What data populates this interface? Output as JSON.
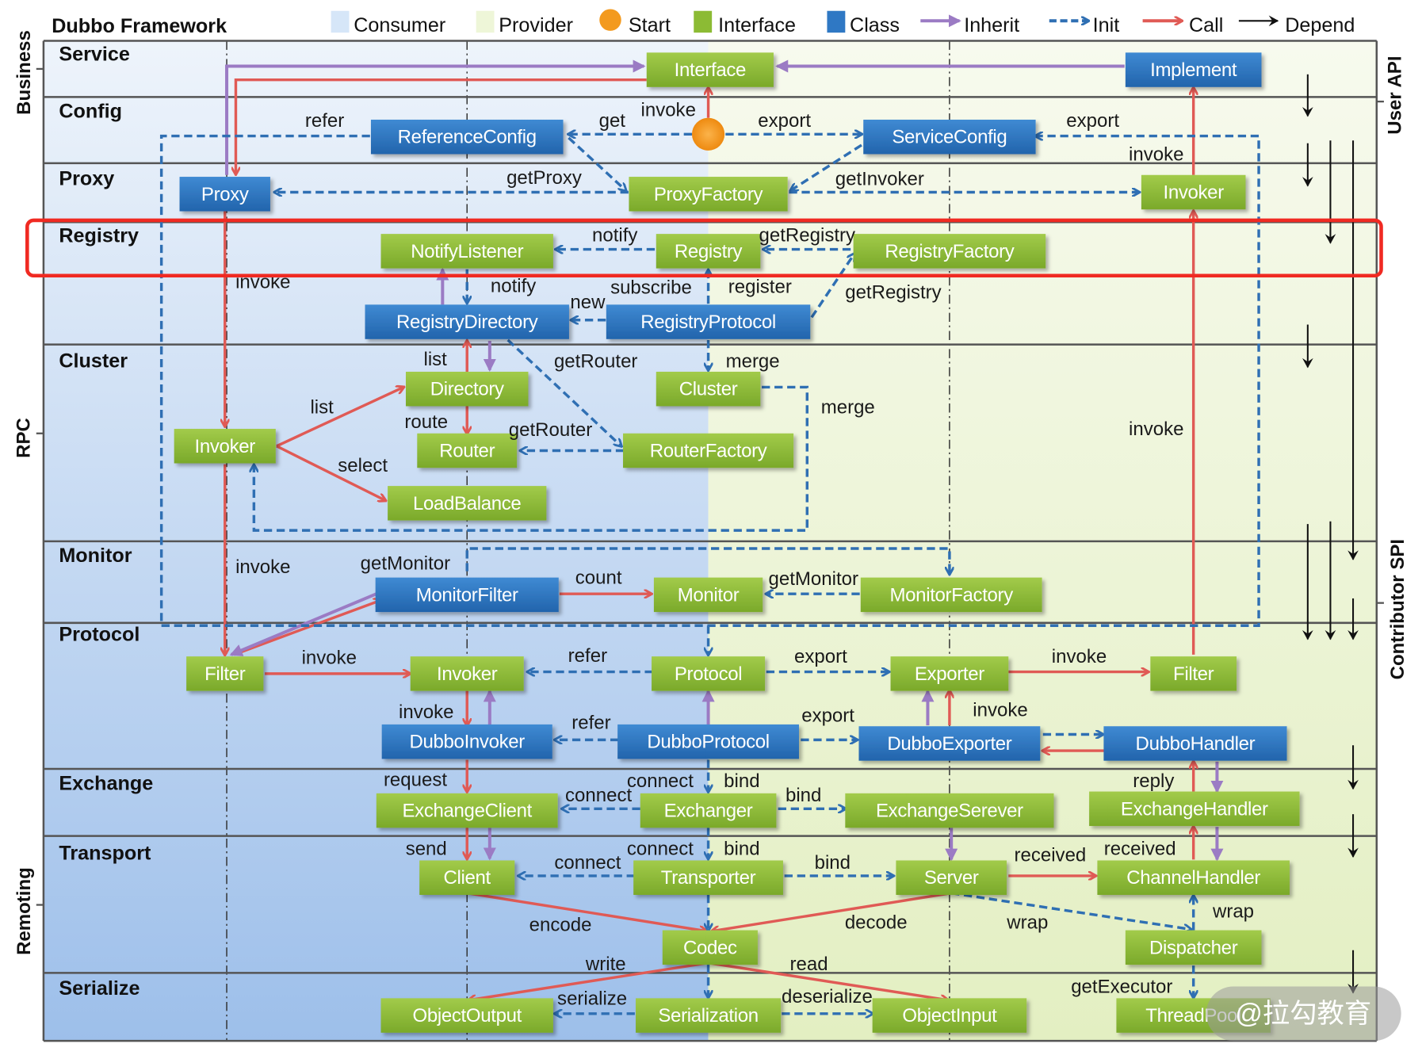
{
  "title": "Dubbo Framework",
  "legend": [
    {
      "label": "Consumer",
      "symbol": "swatch",
      "color": "#d6e6f8"
    },
    {
      "label": "Provider",
      "symbol": "swatch",
      "color": "#eef6d8"
    },
    {
      "label": "Start",
      "symbol": "circle",
      "color": "#f39a1e"
    },
    {
      "label": "Interface",
      "symbol": "swatch",
      "color": "#8cbb34"
    },
    {
      "label": "Class",
      "symbol": "swatch",
      "color": "#2f78c4"
    },
    {
      "label": "Inherit",
      "symbol": "arrow-solid",
      "color": "#9b7bc4"
    },
    {
      "label": "Init",
      "symbol": "arrow-dashed",
      "color": "#2f6fb3"
    },
    {
      "label": "Call",
      "symbol": "arrow-solid",
      "color": "#e05a55"
    },
    {
      "label": "Depend",
      "symbol": "arrow-thin",
      "color": "#111111"
    }
  ],
  "groups_left": [
    "Business",
    "RPC",
    "Remoting"
  ],
  "groups_right": [
    "User API",
    "Contributor SPI"
  ],
  "layers": [
    "Service",
    "Config",
    "Proxy",
    "Registry",
    "Cluster",
    "Monitor",
    "Protocol",
    "Exchange",
    "Transport",
    "Serialize"
  ],
  "highlighted_layer": "Registry",
  "nodes": [
    {
      "label": "Interface",
      "kind": "interface"
    },
    {
      "label": "Implement",
      "kind": "class"
    },
    {
      "label": "ReferenceConfig",
      "kind": "class"
    },
    {
      "label": "ServiceConfig",
      "kind": "class"
    },
    {
      "label": "Proxy",
      "kind": "class"
    },
    {
      "label": "ProxyFactory",
      "kind": "interface"
    },
    {
      "label": "Invoker",
      "kind": "interface"
    },
    {
      "label": "NotifyListener",
      "kind": "interface"
    },
    {
      "label": "Registry",
      "kind": "interface"
    },
    {
      "label": "RegistryFactory",
      "kind": "interface"
    },
    {
      "label": "RegistryDirectory",
      "kind": "class"
    },
    {
      "label": "RegistryProtocol",
      "kind": "class"
    },
    {
      "label": "Directory",
      "kind": "interface"
    },
    {
      "label": "Cluster",
      "kind": "interface"
    },
    {
      "label": "Invoker",
      "kind": "interface"
    },
    {
      "label": "Router",
      "kind": "interface"
    },
    {
      "label": "RouterFactory",
      "kind": "interface"
    },
    {
      "label": "LoadBalance",
      "kind": "interface"
    },
    {
      "label": "MonitorFilter",
      "kind": "class"
    },
    {
      "label": "Monitor",
      "kind": "interface"
    },
    {
      "label": "MonitorFactory",
      "kind": "interface"
    },
    {
      "label": "Filter",
      "kind": "interface"
    },
    {
      "label": "Invoker",
      "kind": "interface"
    },
    {
      "label": "Protocol",
      "kind": "interface"
    },
    {
      "label": "Exporter",
      "kind": "interface"
    },
    {
      "label": "Filter",
      "kind": "interface"
    },
    {
      "label": "DubboInvoker",
      "kind": "class"
    },
    {
      "label": "DubboProtocol",
      "kind": "class"
    },
    {
      "label": "DubboExporter",
      "kind": "class"
    },
    {
      "label": "DubboHandler",
      "kind": "class"
    },
    {
      "label": "ExchangeClient",
      "kind": "interface"
    },
    {
      "label": "Exchanger",
      "kind": "interface"
    },
    {
      "label": "ExchangeSerever",
      "kind": "interface"
    },
    {
      "label": "ExchangeHandler",
      "kind": "interface"
    },
    {
      "label": "Client",
      "kind": "interface"
    },
    {
      "label": "Transporter",
      "kind": "interface"
    },
    {
      "label": "Server",
      "kind": "interface"
    },
    {
      "label": "ChannelHandler",
      "kind": "interface"
    },
    {
      "label": "Codec",
      "kind": "interface"
    },
    {
      "label": "Dispatcher",
      "kind": "interface"
    },
    {
      "label": "ObjectOutput",
      "kind": "interface"
    },
    {
      "label": "Serialization",
      "kind": "interface"
    },
    {
      "label": "ObjectInput",
      "kind": "interface"
    },
    {
      "label": "ThreadPool",
      "kind": "interface"
    }
  ],
  "edge_labels": [
    "refer",
    "get",
    "invoke",
    "export",
    "export",
    "invoke",
    "getProxy",
    "getInvoker",
    "notify",
    "getRegistry",
    "invoke",
    "notify",
    "subscribe",
    "register",
    "new",
    "getRegistry",
    "list",
    "getRouter",
    "merge",
    "list",
    "merge",
    "route",
    "getRouter",
    "select",
    "invoke",
    "invoke",
    "getMonitor",
    "count",
    "getMonitor",
    "invoke",
    "refer",
    "export",
    "invoke",
    "invoke",
    "refer",
    "export",
    "invoke",
    "request",
    "connect",
    "bind",
    "reply",
    "connect",
    "bind",
    "send",
    "connect",
    "bind",
    "bind",
    "received",
    "received",
    "connect",
    "wrap",
    "encode",
    "decode",
    "wrap",
    "write",
    "read",
    "getExecutor",
    "serialize",
    "deserialize"
  ],
  "colors": {
    "interface": "#8cbb34",
    "class": "#2f78c4",
    "inherit": "#9b7bc4",
    "init": "#2f6fb3",
    "call": "#e05a55",
    "depend": "#111111",
    "highlight": "#f02a22"
  },
  "watermark": "@拉勾教育"
}
